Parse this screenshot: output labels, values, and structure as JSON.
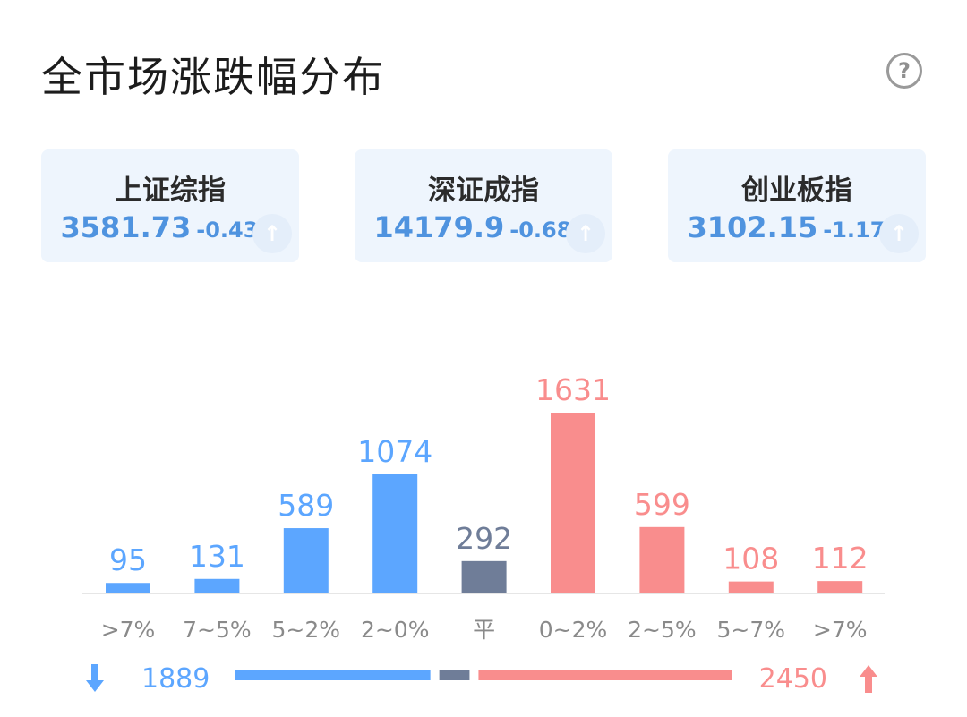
{
  "title": "全市场涨跌幅分布",
  "help_icon": "question-circle-icon",
  "indices": [
    {
      "name": "上证综指",
      "value": "3581.73",
      "change": "-0.43%",
      "icon": "trend-arrow-icon"
    },
    {
      "name": "深证成指",
      "value": "14179.9",
      "change": "-0.68%",
      "icon": "trend-arrow-icon"
    },
    {
      "name": "创业板指",
      "value": "3102.15",
      "change": "-1.17%",
      "icon": "trend-arrow-icon"
    }
  ],
  "colors": {
    "down": "#5ca6ff",
    "flat": "#6f7d98",
    "up": "#f98d8d",
    "index_value": "#4f93df"
  },
  "chart_data": {
    "type": "bar",
    "categories": [
      ">7%",
      "7~5%",
      "5~2%",
      "2~0%",
      "平",
      "0~2%",
      "2~5%",
      "5~7%",
      ">7%"
    ],
    "values": [
      95,
      131,
      589,
      1074,
      292,
      1631,
      599,
      108,
      112
    ],
    "groups": [
      "down",
      "down",
      "down",
      "down",
      "flat",
      "up",
      "up",
      "up",
      "up"
    ],
    "ylim": [
      0,
      1631
    ]
  },
  "summary": {
    "down_total": "1889",
    "flat_total": "292",
    "up_total": "2450",
    "down_icon": "arrow-down-icon",
    "up_icon": "arrow-up-icon"
  }
}
